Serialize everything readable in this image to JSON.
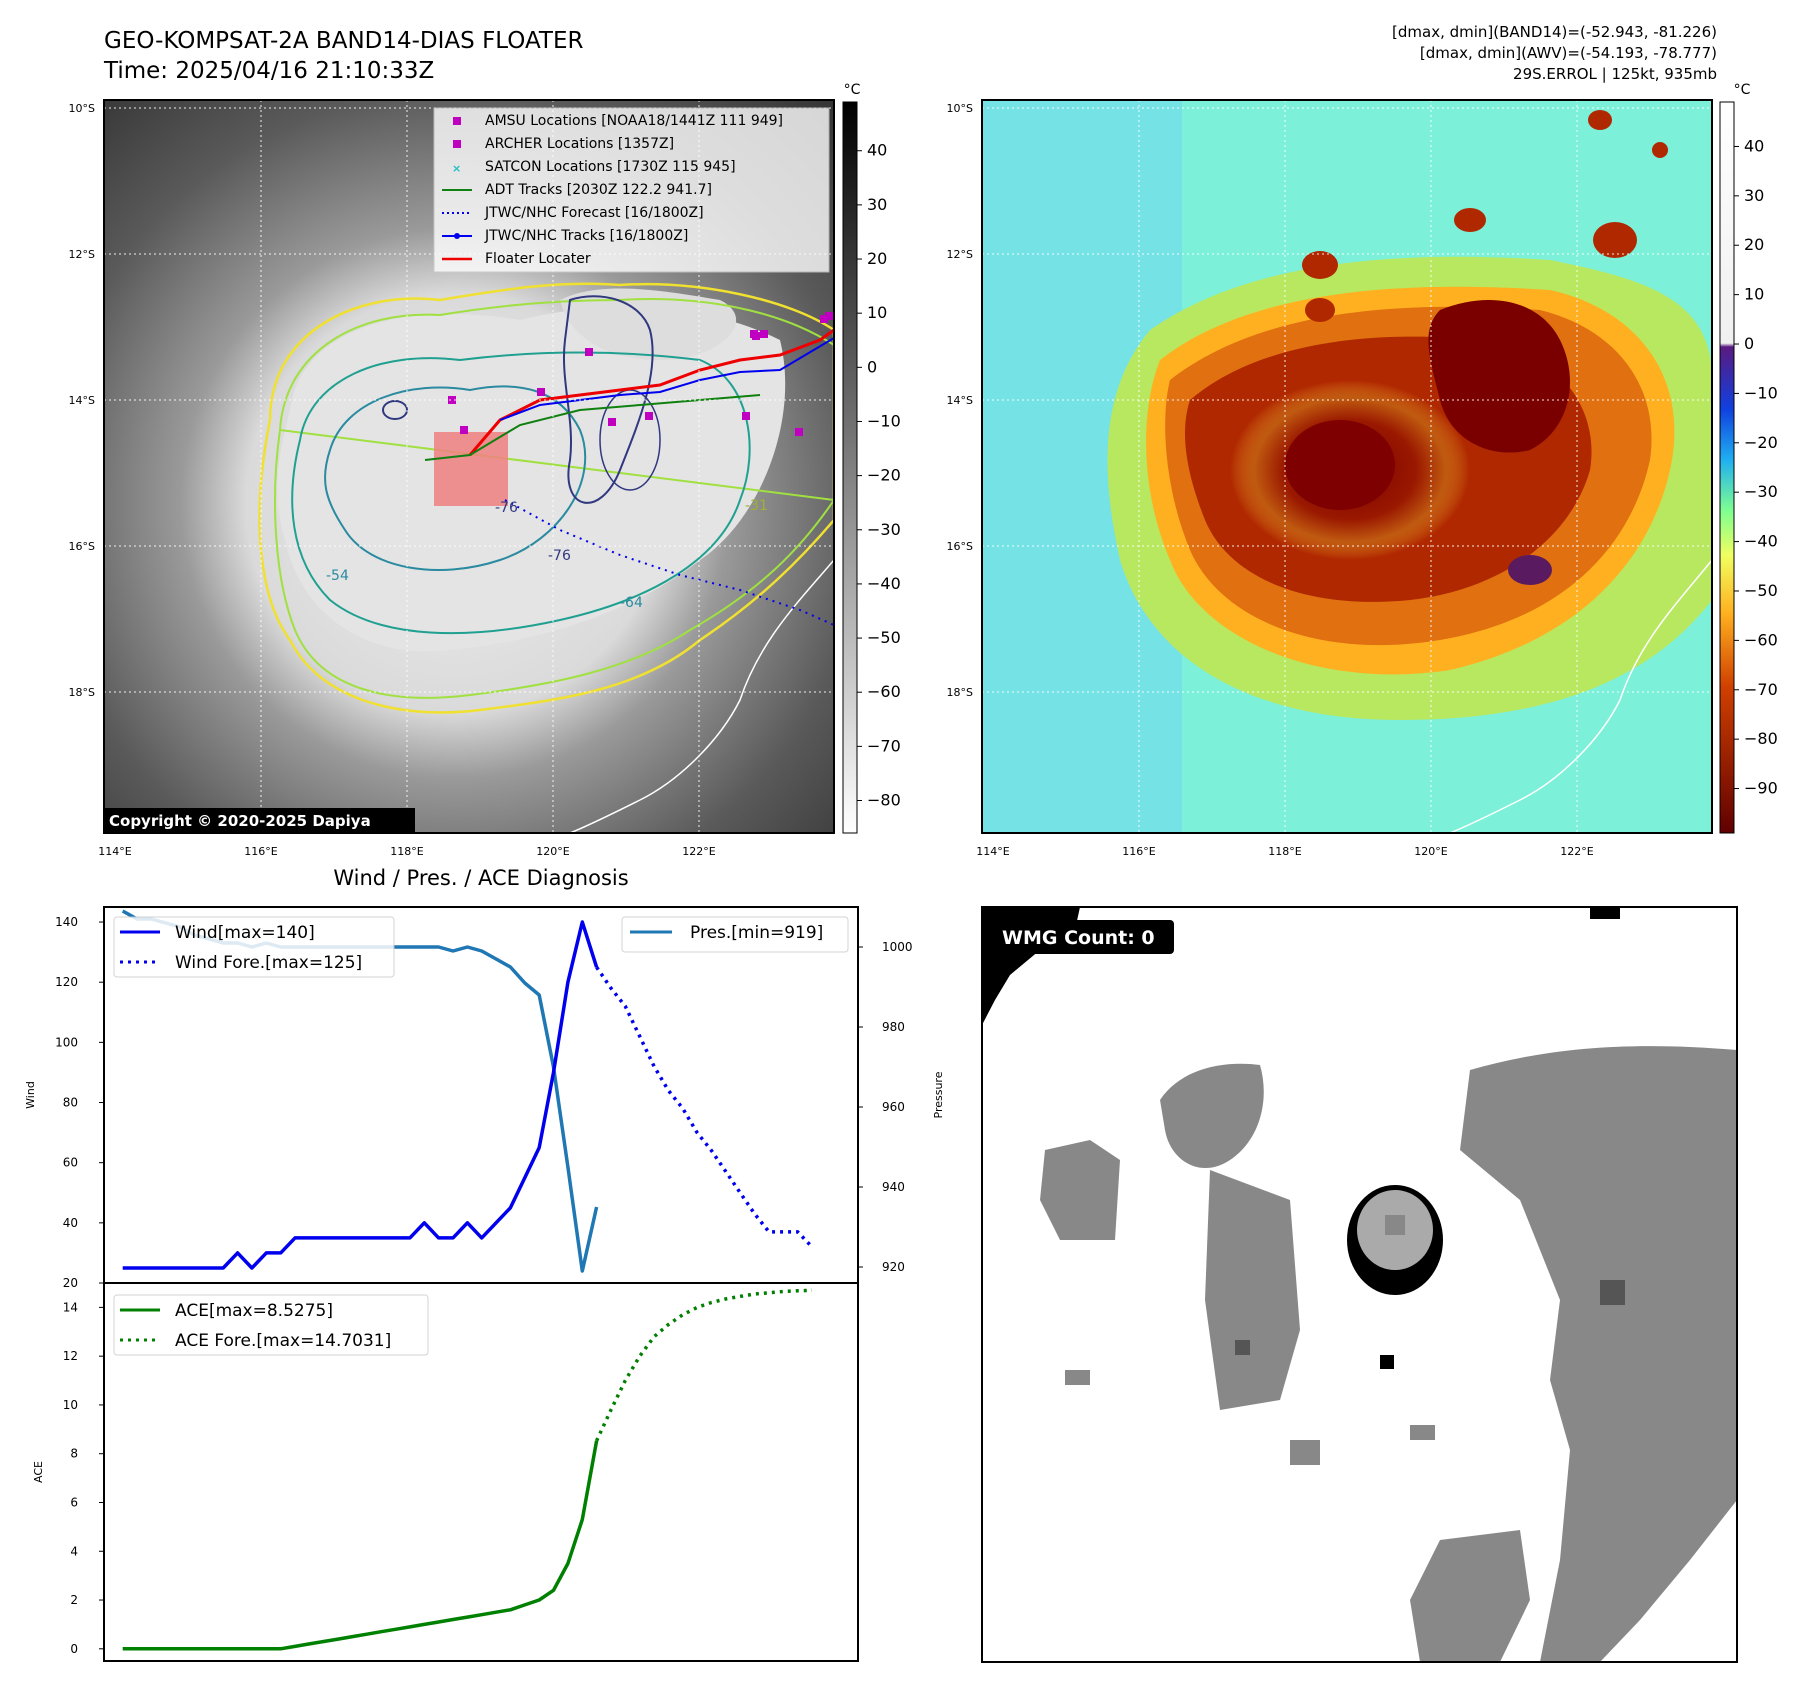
{
  "header": {
    "title_line1": "GEO-KOMPSAT-2A BAND14-DIAS FLOATER",
    "title_line2": "Time: 2025/04/16 21:10:33Z",
    "info_line1": "[dmax, dmin](BAND14)=(-52.943, -81.226)",
    "info_line2": "[dmax, dmin](AWV)=(-54.193, -78.777)",
    "info_line3": "29S.ERROL | 125kt, 935mb"
  },
  "map": {
    "lat_labels": [
      "10°S",
      "12°S",
      "14°S",
      "16°S",
      "18°S"
    ],
    "lon_labels": [
      "114°E",
      "116°E",
      "118°E",
      "120°E",
      "122°E"
    ],
    "copyright": "Copyright © 2020-2025 Dapiya",
    "contour_labels": [
      "-31",
      "-54",
      "-64",
      "-76",
      "-76"
    ],
    "legend": [
      {
        "label": "AMSU Locations [NOAA18/1441Z 111 949]",
        "marker": "square",
        "color": "#c000c0"
      },
      {
        "label": "ARCHER Locations [1357Z]",
        "marker": "square",
        "color": "#c000c0"
      },
      {
        "label": "SATCON Locations [1730Z 115 945]",
        "marker": "x",
        "color": "#20c0c0"
      },
      {
        "label": "ADT Tracks [2030Z 122.2 941.7]",
        "marker": "line",
        "color": "#108010"
      },
      {
        "label": "JTWC/NHC Forecast [16/1800Z]",
        "marker": "dotted",
        "color": "#0000ee"
      },
      {
        "label": "JTWC/NHC Tracks [16/1800Z]",
        "marker": "line-dot",
        "color": "#0000ee"
      },
      {
        "label": "Floater Locater",
        "marker": "line",
        "color": "#ee0000"
      }
    ]
  },
  "colorbar_left": {
    "unit": "°C",
    "ticks": [
      "40",
      "30",
      "20",
      "10",
      "0",
      "−10",
      "−20",
      "−30",
      "−40",
      "−50",
      "−60",
      "−70",
      "−80"
    ]
  },
  "colorbar_right": {
    "unit": "°C",
    "ticks": [
      "40",
      "30",
      "20",
      "10",
      "0",
      "−10",
      "−20",
      "−30",
      "−40",
      "−50",
      "−60",
      "−70",
      "−80",
      "−90"
    ]
  },
  "wmg": {
    "label": "WMG Count: 0"
  },
  "chart_data": [
    {
      "type": "line",
      "title": "Wind / Pres. / ACE Diagnosis",
      "ylabel": "Wind",
      "ylabel_right": "Pressure",
      "ylim": [
        20,
        145
      ],
      "ylim_right": [
        916,
        1010
      ],
      "yticks": [
        20,
        40,
        60,
        80,
        100,
        120,
        140
      ],
      "yticks_right": [
        920,
        940,
        960,
        980,
        1000
      ],
      "series": [
        {
          "name": "Wind[max=140]",
          "color": "#0000ee",
          "style": "solid",
          "x": [
            0,
            1,
            2,
            3,
            4,
            5,
            6,
            7,
            8,
            9,
            10,
            11,
            12,
            13,
            14,
            15,
            16,
            17,
            18,
            19,
            20,
            21,
            22,
            23,
            24,
            25,
            26,
            27,
            28,
            29,
            30,
            31,
            32,
            33,
            34,
            35
          ],
          "values": [
            25,
            25,
            25,
            25,
            25,
            25,
            25,
            25,
            30,
            25,
            30,
            30,
            35,
            35,
            35,
            35,
            35,
            35,
            35,
            35,
            35,
            40,
            35,
            35,
            40,
            35,
            40,
            45,
            55,
            65,
            90,
            120,
            140,
            125,
            null,
            null
          ]
        },
        {
          "name": "Wind Fore.[max=125]",
          "color": "#0000ee",
          "style": "dotted",
          "x": [
            33,
            34,
            35,
            36,
            37,
            38,
            39,
            40,
            41,
            42,
            43,
            44,
            45,
            46,
            47,
            48
          ],
          "values": [
            125,
            118,
            112,
            102,
            92,
            84,
            78,
            70,
            64,
            57,
            50,
            43,
            37,
            37,
            37,
            32
          ]
        },
        {
          "name": "Pres.[min=919]",
          "color": "#1f77b4",
          "style": "solid",
          "axis": "right",
          "x": [
            0,
            1,
            2,
            3,
            4,
            5,
            6,
            7,
            8,
            9,
            10,
            11,
            12,
            13,
            14,
            15,
            16,
            17,
            18,
            19,
            20,
            21,
            22,
            23,
            24,
            25,
            26,
            27,
            28,
            29,
            30,
            31,
            32,
            33
          ],
          "values": [
            1009,
            1007,
            1007,
            1006,
            1005,
            1003,
            1002,
            1001,
            1001,
            1000,
            1001,
            1000,
            1000,
            1000,
            1000,
            1000,
            1000,
            1000,
            1000,
            1000,
            1000,
            1000,
            1000,
            999,
            1000,
            999,
            997,
            995,
            991,
            988,
            970,
            945,
            919,
            935
          ]
        }
      ]
    },
    {
      "type": "line",
      "ylabel": "ACE",
      "ylim": [
        -0.5,
        15
      ],
      "yticks": [
        0,
        2,
        4,
        6,
        8,
        10,
        12,
        14
      ],
      "series": [
        {
          "name": "ACE[max=8.5275]",
          "color": "#008000",
          "style": "solid",
          "x": [
            0,
            1,
            2,
            3,
            4,
            5,
            6,
            7,
            8,
            9,
            10,
            11,
            12,
            13,
            14,
            15,
            16,
            17,
            18,
            19,
            20,
            21,
            22,
            23,
            24,
            25,
            26,
            27,
            28,
            29,
            30,
            31,
            32,
            33
          ],
          "values": [
            0,
            0,
            0,
            0,
            0,
            0,
            0,
            0,
            0,
            0,
            0,
            0,
            0.1,
            0.2,
            0.3,
            0.4,
            0.5,
            0.6,
            0.7,
            0.8,
            0.9,
            1.0,
            1.1,
            1.2,
            1.3,
            1.4,
            1.5,
            1.6,
            1.8,
            2.0,
            2.4,
            3.5,
            5.3,
            8.53
          ]
        },
        {
          "name": "ACE Fore.[max=14.7031]",
          "color": "#008000",
          "style": "dotted",
          "x": [
            33,
            34,
            35,
            36,
            37,
            38,
            39,
            40,
            41,
            42,
            43,
            44,
            45,
            46,
            47,
            48
          ],
          "values": [
            8.53,
            9.8,
            11.0,
            12.0,
            12.8,
            13.3,
            13.7,
            14.0,
            14.2,
            14.35,
            14.45,
            14.55,
            14.6,
            14.65,
            14.68,
            14.7
          ]
        }
      ]
    }
  ]
}
